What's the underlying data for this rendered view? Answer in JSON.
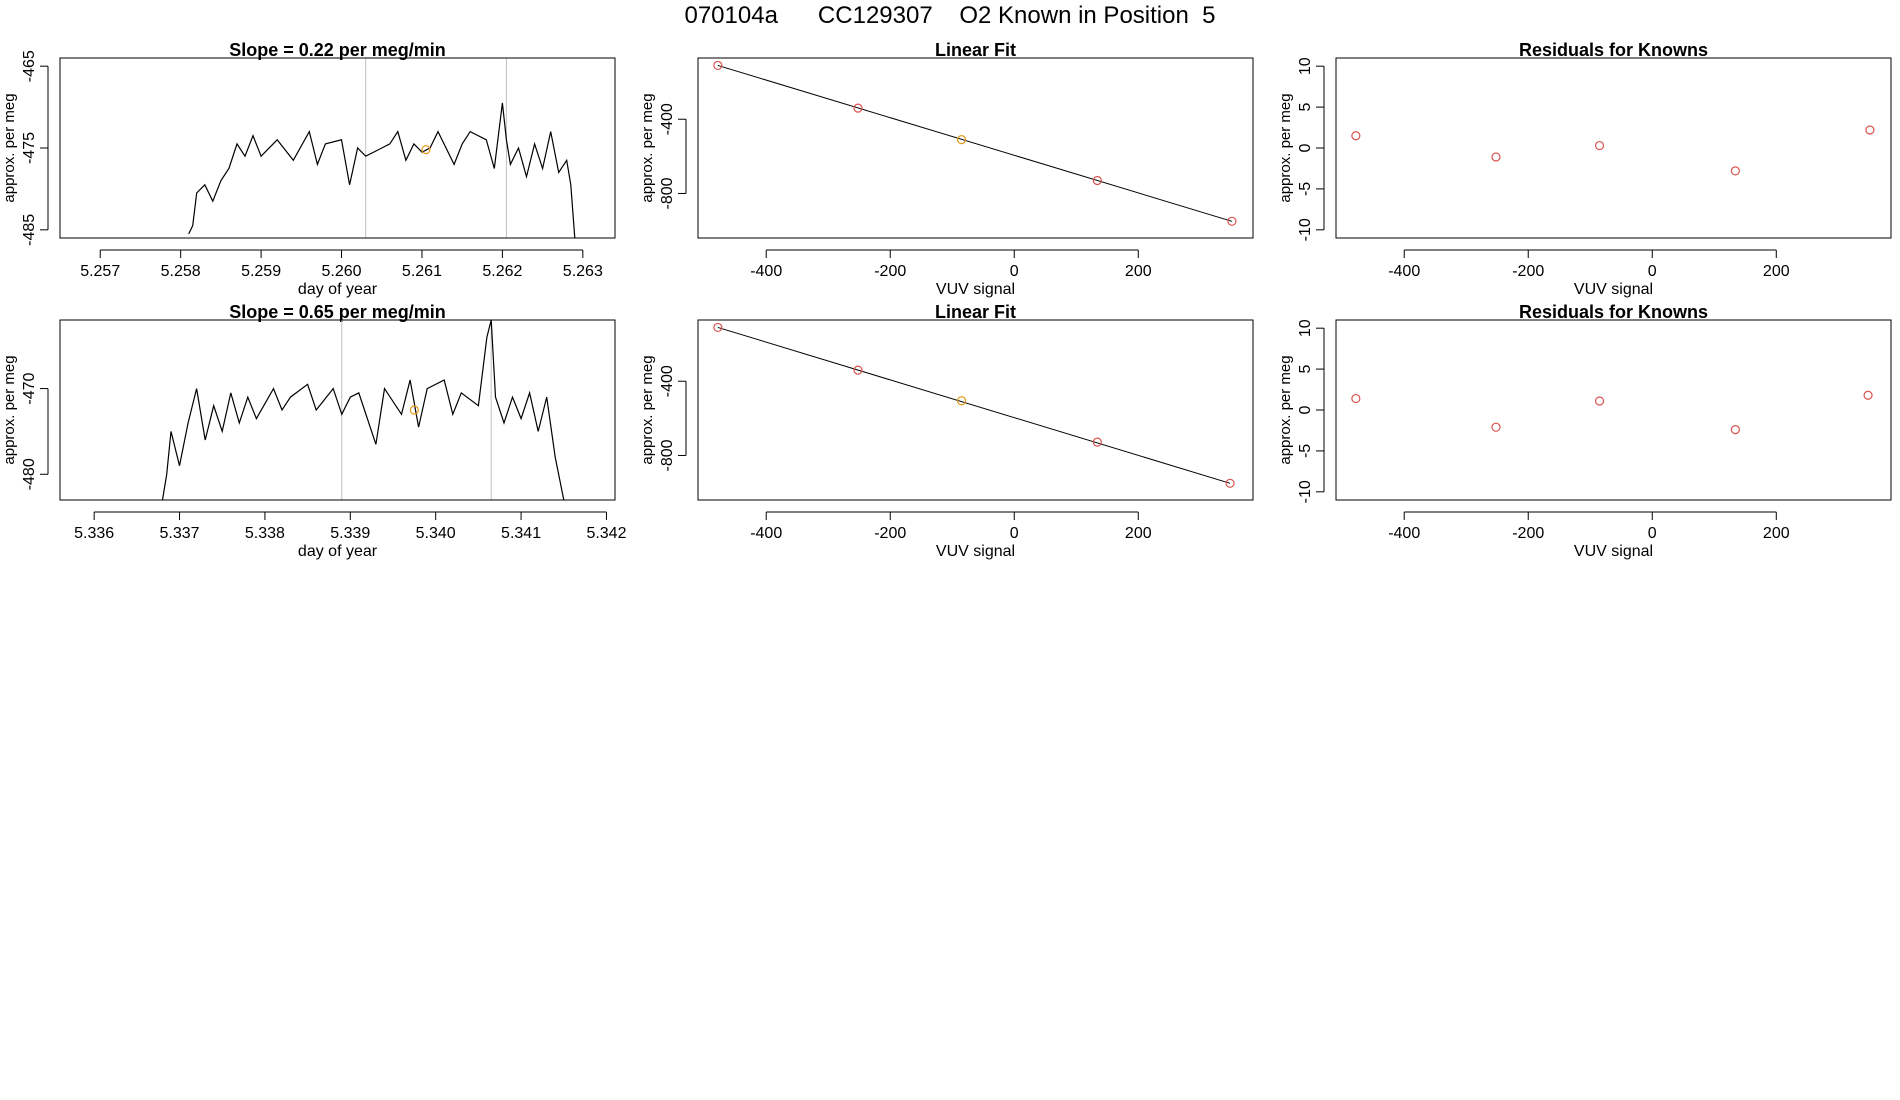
{
  "page": {
    "title": "070104a      CC129307    O2 Known in Position  5"
  },
  "chart_data": [
    {
      "type": "line",
      "title": "Slope =  0.22  per meg/min",
      "xlabel": "day of year",
      "ylabel": "approx. per meg",
      "xlim": [
        5.2565,
        5.2634
      ],
      "ylim": [
        -486,
        -464
      ],
      "xticks": [
        "5.257",
        "5.258",
        "5.259",
        "5.260",
        "5.261",
        "5.262",
        "5.263"
      ],
      "xtick_values": [
        5.257,
        5.258,
        5.259,
        5.26,
        5.261,
        5.262,
        5.263
      ],
      "yticks": [
        "-465",
        "-475",
        "-485"
      ],
      "ytick_values": [
        -465,
        -475,
        -485
      ],
      "vlines": [
        5.2603,
        5.26205
      ],
      "orange_points": [
        {
          "x": 5.26105,
          "y": -475.2
        }
      ],
      "series": [
        {
          "x": [
            5.2581,
            5.25815,
            5.2582,
            5.2583,
            5.2584,
            5.2585,
            5.2586,
            5.2587,
            5.2588,
            5.2589,
            5.259,
            5.2592,
            5.2594,
            5.2596,
            5.2597,
            5.2598,
            5.26,
            5.2601,
            5.2602,
            5.2603,
            5.2604,
            5.2606,
            5.2607,
            5.2608,
            5.2609,
            5.261,
            5.2611,
            5.2612,
            5.2614,
            5.2615,
            5.2616,
            5.2618,
            5.2619,
            5.262,
            5.26205,
            5.2621,
            5.2622,
            5.2623,
            5.2624,
            5.2625,
            5.2626,
            5.2627,
            5.2628,
            5.26285,
            5.2629
          ],
          "y": [
            -485.5,
            -484.5,
            -480.5,
            -479.5,
            -481.5,
            -479.0,
            -477.5,
            -474.5,
            -476.0,
            -473.5,
            -476.0,
            -474.0,
            -476.5,
            -473.0,
            -477.0,
            -474.5,
            -474.0,
            -479.5,
            -475.0,
            -476.0,
            -475.5,
            -474.5,
            -473.0,
            -476.5,
            -474.5,
            -475.5,
            -475.0,
            -473.0,
            -477.0,
            -474.5,
            -473.0,
            -474.0,
            -477.5,
            -469.5,
            -474.0,
            -477.0,
            -475.0,
            -478.5,
            -474.5,
            -477.5,
            -473.0,
            -478.0,
            -476.5,
            -479.5,
            -486.0
          ]
        }
      ]
    },
    {
      "type": "scatter",
      "title": "Linear Fit",
      "xlabel": "VUV signal",
      "ylabel": "approx. per meg",
      "xlim": [
        -510,
        385
      ],
      "ylim": [
        -1040,
        -70
      ],
      "xticks": [
        "-400",
        "-200",
        "0",
        "200"
      ],
      "xtick_values": [
        -400,
        -200,
        0,
        200
      ],
      "yticks": [
        "-400",
        "-800"
      ],
      "ytick_values": [
        -400,
        -800
      ],
      "series": [
        {
          "x": [
            -478,
            -252,
            -85,
            134,
            351
          ],
          "y": [
            -110,
            -340,
            -510,
            -730,
            -950
          ],
          "colors": [
            "#d9534f",
            "#d9534f",
            "#e69a1a",
            "#d9534f",
            "#d9534f"
          ]
        }
      ],
      "fit_line": {
        "x": [
          -478,
          351
        ],
        "y": [
          -110,
          -950
        ]
      }
    },
    {
      "type": "scatter",
      "title": "Residuals for Knowns",
      "xlabel": "VUV signal",
      "ylabel": "approx. per meg",
      "xlim": [
        -510,
        385
      ],
      "ylim": [
        -11,
        11
      ],
      "xticks": [
        "-400",
        "-200",
        "0",
        "200"
      ],
      "xtick_values": [
        -400,
        -200,
        0,
        200
      ],
      "yticks": [
        "10",
        "5",
        "0",
        "-5",
        "-10"
      ],
      "ytick_values": [
        10,
        5,
        0,
        -5,
        -10
      ],
      "series": [
        {
          "x": [
            -478,
            -252,
            -85,
            134,
            351
          ],
          "y": [
            1.5,
            -1.1,
            0.3,
            -2.8,
            2.2
          ],
          "colors": [
            "#d9534f",
            "#d9534f",
            "#d9534f",
            "#d9534f",
            "#d9534f"
          ]
        }
      ]
    },
    {
      "type": "line",
      "title": "Slope =  0.65  per meg/min",
      "xlabel": "day of year",
      "ylabel": "approx. per meg",
      "xlim": [
        5.3356,
        5.3421
      ],
      "ylim": [
        -483,
        -462
      ],
      "xticks": [
        "5.336",
        "5.337",
        "5.338",
        "5.339",
        "5.340",
        "5.341",
        "5.342"
      ],
      "xtick_values": [
        5.336,
        5.337,
        5.338,
        5.339,
        5.34,
        5.341,
        5.342
      ],
      "yticks": [
        "-470",
        "-480"
      ],
      "ytick_values": [
        -470,
        -480
      ],
      "vlines": [
        5.3389,
        5.34065
      ],
      "orange_points": [
        {
          "x": 5.33975,
          "y": -472.5
        }
      ],
      "series": [
        {
          "x": [
            5.3368,
            5.33685,
            5.3369,
            5.337,
            5.3371,
            5.3372,
            5.3373,
            5.3374,
            5.3375,
            5.3376,
            5.3377,
            5.3378,
            5.3379,
            5.3381,
            5.3382,
            5.3383,
            5.3385,
            5.3386,
            5.3388,
            5.3389,
            5.339,
            5.3391,
            5.3393,
            5.3394,
            5.3396,
            5.3397,
            5.3398,
            5.3399,
            5.3401,
            5.3402,
            5.3403,
            5.3405,
            5.3406,
            5.34065,
            5.3407,
            5.3408,
            5.3409,
            5.341,
            5.3411,
            5.3412,
            5.3413,
            5.3414,
            5.3415
          ],
          "y": [
            -483.0,
            -480.0,
            -475.0,
            -479.0,
            -474.0,
            -470.0,
            -476.0,
            -472.0,
            -475.0,
            -470.5,
            -474.0,
            -471.0,
            -473.5,
            -470.0,
            -472.5,
            -471.0,
            -469.5,
            -472.5,
            -470.0,
            -473.0,
            -471.0,
            -470.5,
            -476.5,
            -470.0,
            -473.0,
            -469.0,
            -474.5,
            -470.0,
            -469.0,
            -473.0,
            -470.5,
            -472.0,
            -464.0,
            -462.0,
            -471.0,
            -474.0,
            -471.0,
            -473.5,
            -470.5,
            -475.0,
            -471.0,
            -478.0,
            -483.0
          ]
        }
      ]
    },
    {
      "type": "scatter",
      "title": "Linear Fit",
      "xlabel": "VUV signal",
      "ylabel": "approx. per meg",
      "xlim": [
        -510,
        385
      ],
      "ylim": [
        -1040,
        -70
      ],
      "xticks": [
        "-400",
        "-200",
        "0",
        "200"
      ],
      "xtick_values": [
        -400,
        -200,
        0,
        200
      ],
      "yticks": [
        "-400",
        "-800"
      ],
      "ytick_values": [
        -400,
        -800
      ],
      "series": [
        {
          "x": [
            -478,
            -252,
            -85,
            134,
            348
          ],
          "y": [
            -110,
            -340,
            -505,
            -728,
            -950
          ],
          "colors": [
            "#d9534f",
            "#d9534f",
            "#e69a1a",
            "#d9534f",
            "#d9534f"
          ]
        }
      ],
      "fit_line": {
        "x": [
          -478,
          348
        ],
        "y": [
          -110,
          -950
        ]
      }
    },
    {
      "type": "scatter",
      "title": "Residuals for Knowns",
      "xlabel": "VUV signal",
      "ylabel": "approx. per meg",
      "xlim": [
        -510,
        385
      ],
      "ylim": [
        -11,
        11
      ],
      "xticks": [
        "-400",
        "-200",
        "0",
        "200"
      ],
      "xtick_values": [
        -400,
        -200,
        0,
        200
      ],
      "yticks": [
        "10",
        "5",
        "0",
        "-5",
        "-10"
      ],
      "ytick_values": [
        10,
        5,
        0,
        -5,
        -10
      ],
      "series": [
        {
          "x": [
            -478,
            -252,
            -85,
            134,
            348
          ],
          "y": [
            1.4,
            -2.1,
            1.1,
            -2.4,
            1.8
          ],
          "colors": [
            "#d9534f",
            "#d9534f",
            "#d9534f",
            "#d9534f",
            "#d9534f"
          ]
        }
      ]
    }
  ]
}
